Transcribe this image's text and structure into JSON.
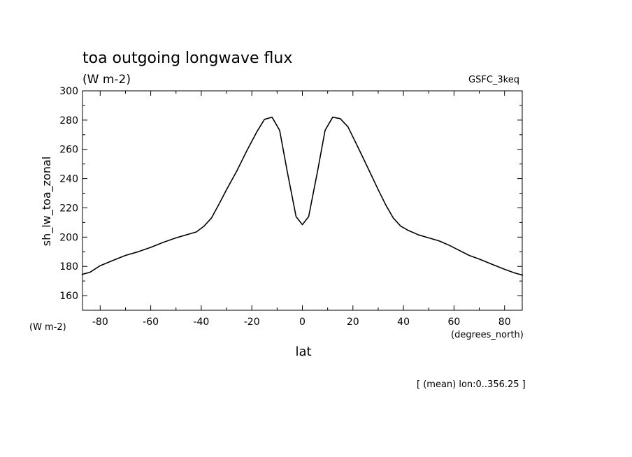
{
  "chart_data": {
    "type": "line",
    "title": "toa outgoing longwave flux",
    "units": "(W m-2)",
    "dataset": "GSFC_3keq",
    "ylabel": "sh_lw_toa_zonal",
    "y_units": "(W m-2)",
    "xlabel": "lat",
    "x_units": "(degrees_north)",
    "footnote": "[ (mean) lon:0..356.25 ]",
    "xlim": [
      -87,
      87
    ],
    "ylim": [
      150,
      300
    ],
    "x_ticks": [
      -80,
      -60,
      -40,
      -20,
      0,
      20,
      40,
      60,
      80
    ],
    "x_tick_labels": [
      "-80",
      "-60",
      "-40",
      "-20",
      "0",
      "20",
      "40",
      "60",
      "80"
    ],
    "y_ticks": [
      160,
      180,
      200,
      220,
      240,
      260,
      280,
      300
    ],
    "y_tick_labels": [
      "160",
      "180",
      "200",
      "220",
      "240",
      "260",
      "280",
      "300"
    ],
    "grid": false,
    "series": [
      {
        "x": [
          -87.2,
          -84,
          -80,
          -75,
          -70,
          -65,
          -60,
          -55,
          -50,
          -45,
          -42,
          -38.9,
          -36,
          -33,
          -30,
          -26,
          -22,
          -18,
          -15,
          -12,
          -9,
          -6,
          -2.5,
          0,
          2.5,
          6,
          9,
          12,
          15,
          18,
          22,
          26,
          30,
          33,
          36,
          38.9,
          42,
          46,
          50,
          54,
          58,
          62,
          66,
          70,
          75,
          80,
          84,
          87.2
        ],
        "y": [
          174.5,
          176,
          180.5,
          184,
          187.5,
          190,
          193,
          196.5,
          199.5,
          202,
          203.5,
          207.5,
          213,
          222.5,
          232.5,
          245,
          259,
          272,
          280.5,
          282,
          273,
          245,
          214,
          208.5,
          214,
          245,
          273,
          282,
          281,
          275.5,
          261.5,
          247,
          232.5,
          222,
          213,
          207.5,
          204.5,
          201.5,
          199.5,
          197.5,
          194.5,
          191,
          187.5,
          185,
          181.5,
          178,
          175.5,
          174
        ]
      }
    ]
  }
}
